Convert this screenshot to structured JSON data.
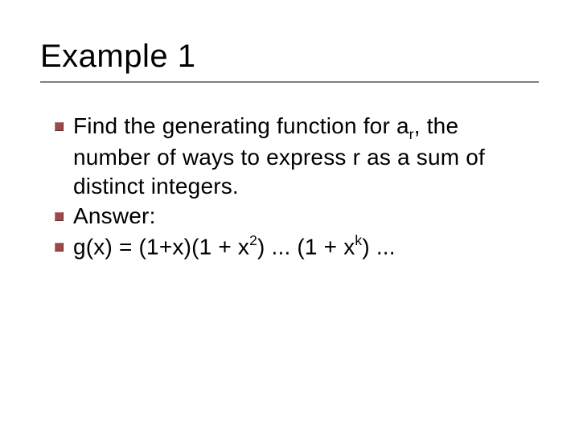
{
  "title": "Example 1",
  "bullet_color": "#9a4a4a",
  "underline_color": "#808080",
  "text_color": "#000000",
  "background_color": "#ffffff",
  "title_fontsize": 40,
  "body_fontsize": 28,
  "bullets": [
    {
      "segments": [
        {
          "t": "Find the generating function for a"
        },
        {
          "t": "r",
          "sub": true
        },
        {
          "t": ", the number of ways to express r as a sum of distinct integers."
        }
      ]
    },
    {
      "segments": [
        {
          "t": "Answer:"
        }
      ]
    },
    {
      "segments": [
        {
          "t": "g(x) = (1+x)(1 + x"
        },
        {
          "t": "2",
          "sup": true
        },
        {
          "t": ") ... (1 + x"
        },
        {
          "t": "k",
          "sup": true
        },
        {
          "t": ") ..."
        }
      ]
    }
  ]
}
